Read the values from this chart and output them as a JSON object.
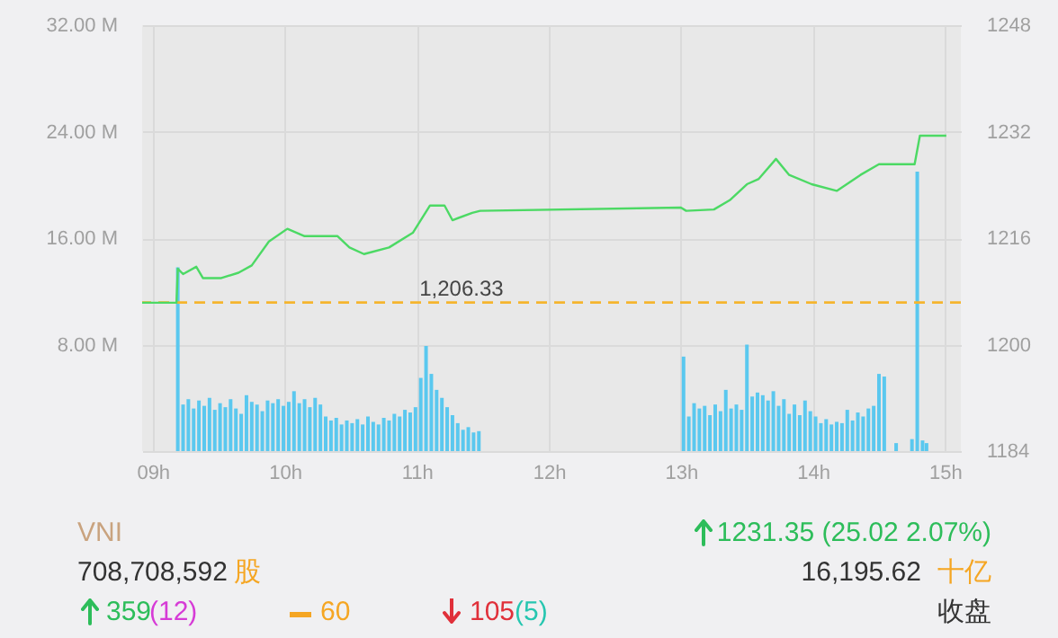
{
  "chart_data": {
    "type": "bar",
    "annotations": [
      "VNI",
      "708,708,592",
      "股",
      "1231.35 (25.02 2.07%)",
      "16,195.62",
      "十亿",
      "359",
      "(12)",
      "60",
      "105",
      "(5)",
      "收盘"
    ],
    "xlim": [
      8.92,
      15.12
    ],
    "xticks": [
      {
        "value": 9,
        "label": "09h"
      },
      {
        "value": 10,
        "label": "10h"
      },
      {
        "value": 11,
        "label": "11h"
      },
      {
        "value": 12,
        "label": "12h"
      },
      {
        "value": 13,
        "label": "13h"
      },
      {
        "value": 14,
        "label": "14h"
      },
      {
        "value": 15,
        "label": "15h"
      }
    ],
    "ylim": [
      0,
      32
    ],
    "yticks": [
      {
        "value": 0,
        "label": null
      },
      {
        "value": 8,
        "label": "8.00 M"
      },
      {
        "value": 16,
        "label": "16.00 M"
      },
      {
        "value": 24,
        "label": "24.00 M"
      },
      {
        "value": 32,
        "label": "32.00 M"
      }
    ],
    "y2lim": [
      1184,
      1248
    ],
    "y2ticks": [
      1184,
      1200,
      1216,
      1232,
      1248
    ],
    "grid": true,
    "ref_lines": [
      {
        "axis": "y2",
        "value": 1206.33,
        "label": "1,206.33",
        "color": "#f5b52e",
        "line_style": "dashed"
      }
    ],
    "series": [
      {
        "color": "#5ac8ef",
        "x": [
          9.19,
          9.23,
          9.27,
          9.31,
          9.35,
          9.39,
          9.43,
          9.47,
          9.51,
          9.55,
          9.59,
          9.63,
          9.67,
          9.71,
          9.75,
          9.79,
          9.83,
          9.87,
          9.91,
          9.95,
          9.99,
          10.03,
          10.07,
          10.11,
          10.15,
          10.19,
          10.23,
          10.27,
          10.31,
          10.35,
          10.39,
          10.43,
          10.47,
          10.51,
          10.55,
          10.59,
          10.63,
          10.67,
          10.71,
          10.75,
          10.79,
          10.83,
          10.87,
          10.91,
          10.95,
          10.99,
          11.03,
          11.07,
          11.11,
          11.15,
          11.19,
          11.23,
          11.27,
          11.31,
          11.35,
          11.39,
          11.43,
          11.47,
          13.02,
          13.06,
          13.1,
          13.14,
          13.18,
          13.22,
          13.26,
          13.3,
          13.34,
          13.38,
          13.42,
          13.46,
          13.5,
          13.54,
          13.58,
          13.62,
          13.66,
          13.7,
          13.74,
          13.78,
          13.82,
          13.86,
          13.9,
          13.94,
          13.98,
          14.02,
          14.06,
          14.1,
          14.14,
          14.18,
          14.22,
          14.26,
          14.3,
          14.34,
          14.38,
          14.42,
          14.46,
          14.5,
          14.54,
          14.63,
          14.75,
          14.79,
          14.83,
          14.86
        ],
        "values": [
          13.8,
          3.5,
          3.9,
          3.2,
          3.8,
          3.4,
          4.0,
          3.1,
          3.6,
          3.3,
          3.9,
          3.2,
          2.8,
          4.2,
          3.7,
          3.5,
          3.0,
          3.8,
          3.6,
          3.9,
          3.4,
          3.7,
          4.5,
          3.6,
          3.9,
          3.3,
          4.0,
          3.5,
          2.6,
          2.3,
          2.5,
          2.0,
          2.3,
          2.1,
          2.4,
          2.0,
          2.6,
          2.2,
          2.0,
          2.5,
          2.3,
          2.8,
          2.6,
          3.1,
          2.9,
          3.3,
          5.5,
          7.9,
          5.8,
          4.6,
          4.0,
          3.3,
          2.7,
          2.1,
          1.6,
          1.8,
          1.4,
          1.5,
          7.1,
          2.6,
          3.6,
          3.2,
          3.4,
          2.7,
          3.5,
          3.0,
          4.6,
          3.2,
          3.5,
          3.1,
          8.0,
          4.1,
          4.4,
          4.2,
          3.8,
          4.5,
          3.4,
          3.9,
          2.8,
          3.5,
          2.7,
          3.8,
          3.0,
          2.6,
          2.1,
          2.4,
          2.0,
          2.2,
          2.1,
          3.1,
          2.3,
          2.9,
          2.6,
          3.2,
          3.4,
          5.8,
          5.6,
          0.6,
          0.9,
          21.0,
          0.8,
          0.6
        ]
      },
      {
        "type": "line",
        "axis": "y2",
        "color": "#4cd964",
        "x": [
          8.92,
          9.18,
          9.19,
          9.23,
          9.33,
          9.38,
          9.52,
          9.65,
          9.75,
          9.88,
          10.02,
          10.15,
          10.4,
          10.49,
          10.6,
          10.79,
          10.97,
          11.1,
          11.21,
          11.27,
          11.42,
          11.48,
          13.0,
          13.04,
          13.25,
          13.37,
          13.5,
          13.59,
          13.72,
          13.82,
          13.99,
          14.18,
          14.36,
          14.5,
          14.77,
          14.81,
          15.01
        ],
        "values": [
          1206.3,
          1206.3,
          1211.4,
          1210.6,
          1211.7,
          1210.0,
          1210.0,
          1210.8,
          1211.9,
          1215.5,
          1217.4,
          1216.3,
          1216.3,
          1214.6,
          1213.6,
          1214.6,
          1216.8,
          1220.9,
          1220.9,
          1218.7,
          1219.8,
          1220.1,
          1220.6,
          1220.1,
          1220.3,
          1221.7,
          1224.1,
          1224.9,
          1227.9,
          1225.5,
          1224.1,
          1223.1,
          1225.5,
          1227.1,
          1227.1,
          1231.4,
          1231.4
        ]
      }
    ]
  }
}
